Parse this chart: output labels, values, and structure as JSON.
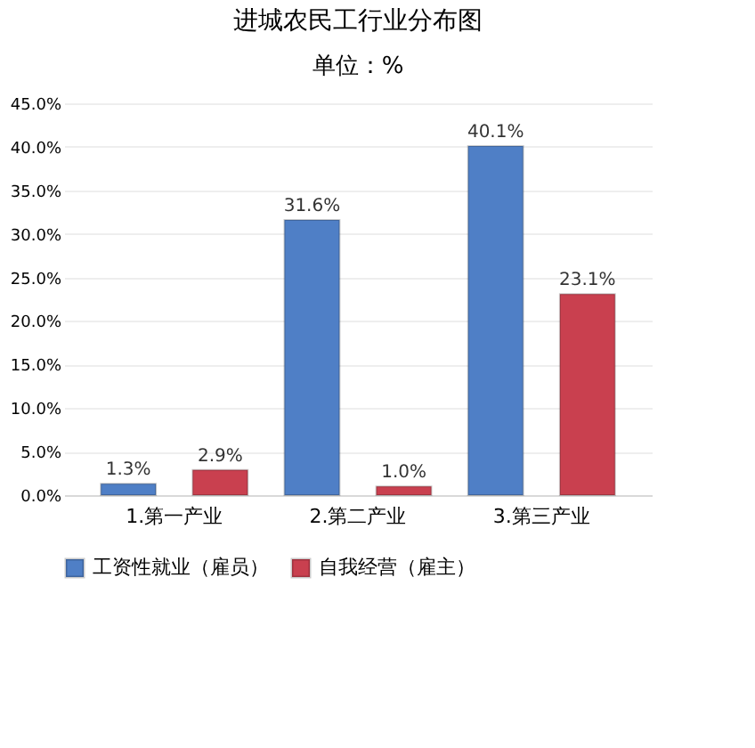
{
  "chart_data": {
    "type": "bar",
    "title": "进城农民工行业分布图",
    "subtitle": "单位：%",
    "categories": [
      "1.第一产业",
      "2.第二产业",
      "3.第三产业"
    ],
    "series": [
      {
        "name": "工资性就业（雇员）",
        "color": "#4f7fc6",
        "values": [
          1.3,
          31.6,
          40.1
        ],
        "value_labels": [
          "1.3%",
          "31.6%",
          "40.1%"
        ]
      },
      {
        "name": "自我经营（雇主）",
        "color": "#c9404f",
        "values": [
          2.9,
          1.0,
          23.1
        ],
        "value_labels": [
          "2.9%",
          "1.0%",
          "23.1%"
        ]
      }
    ],
    "ylim": [
      0,
      45
    ],
    "yticks": [
      {
        "value": 0,
        "label": "0.0%"
      },
      {
        "value": 5,
        "label": "5.0%"
      },
      {
        "value": 10,
        "label": "10.0%"
      },
      {
        "value": 15,
        "label": "15.0%"
      },
      {
        "value": 20,
        "label": "20.0%"
      },
      {
        "value": 25,
        "label": "25.0%"
      },
      {
        "value": 30,
        "label": "30.0%"
      },
      {
        "value": 35,
        "label": "35.0%"
      },
      {
        "value": 40,
        "label": "40.0%"
      },
      {
        "value": 45,
        "label": "45.0%"
      }
    ],
    "grid": "y",
    "legend": "bottom"
  }
}
